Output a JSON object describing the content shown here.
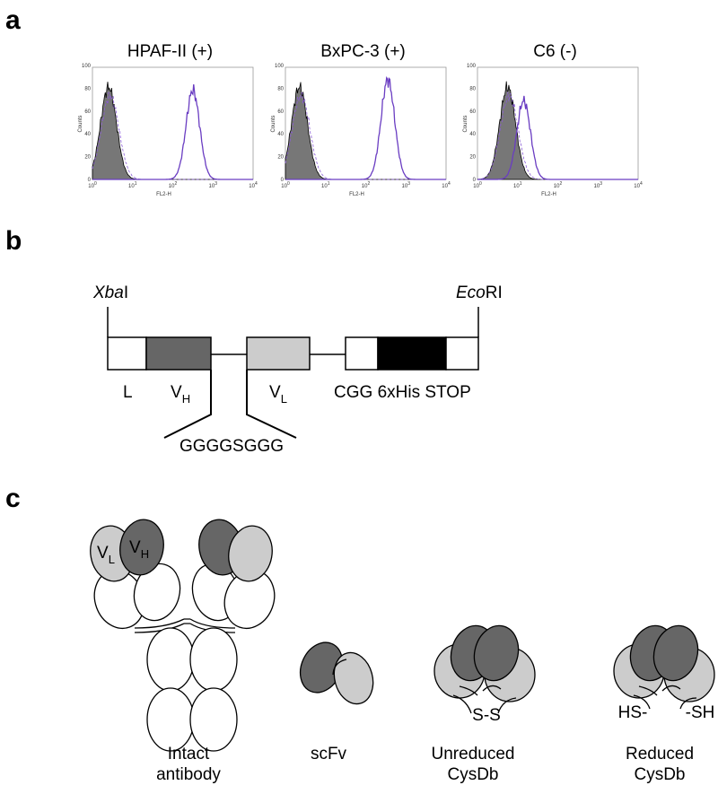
{
  "panel_a": {
    "label": "a",
    "plots": [
      {
        "title": "HPAF-II (+)",
        "ylabel": "Counts",
        "xlabel": "FL2-H"
      },
      {
        "title": "BxPC-3 (+)",
        "ylabel": "Counts",
        "xlabel": "FL2-H"
      },
      {
        "title": "C6 (-)",
        "ylabel": "Counts",
        "xlabel": "FL2-H"
      }
    ],
    "yticks": [
      "0",
      "20",
      "40",
      "60",
      "80",
      "100"
    ],
    "xticks": [
      {
        "base": "10",
        "exp": "0"
      },
      {
        "base": "10",
        "exp": "1"
      },
      {
        "base": "10",
        "exp": "2"
      },
      {
        "base": "10",
        "exp": "3"
      },
      {
        "base": "10",
        "exp": "4"
      }
    ]
  },
  "panel_b": {
    "label": "b",
    "left_site": {
      "italic": "Xba",
      "rest": "I"
    },
    "right_site": {
      "italic": "Eco",
      "rest": "RI"
    },
    "segments": {
      "leader": "L",
      "vh": {
        "main": "V",
        "sub": "H"
      },
      "vl": {
        "main": "V",
        "sub": "L"
      },
      "cgg": "CGG",
      "his": "6xHis",
      "stop": "STOP"
    },
    "linker": "GGGGSGGG"
  },
  "panel_c": {
    "label": "c",
    "vl": {
      "main": "V",
      "sub": "L"
    },
    "vh": {
      "main": "V",
      "sub": "H"
    },
    "formats": [
      {
        "line1": "Intact",
        "line2": "antibody"
      },
      {
        "line1": "scFv"
      },
      {
        "line1": "Unreduced",
        "line2": "CysDb",
        "bond": "S-S"
      },
      {
        "line1": "Reduced",
        "line2": "CysDb",
        "left_thiol": "HS-",
        "right_thiol": "-SH"
      }
    ]
  }
}
